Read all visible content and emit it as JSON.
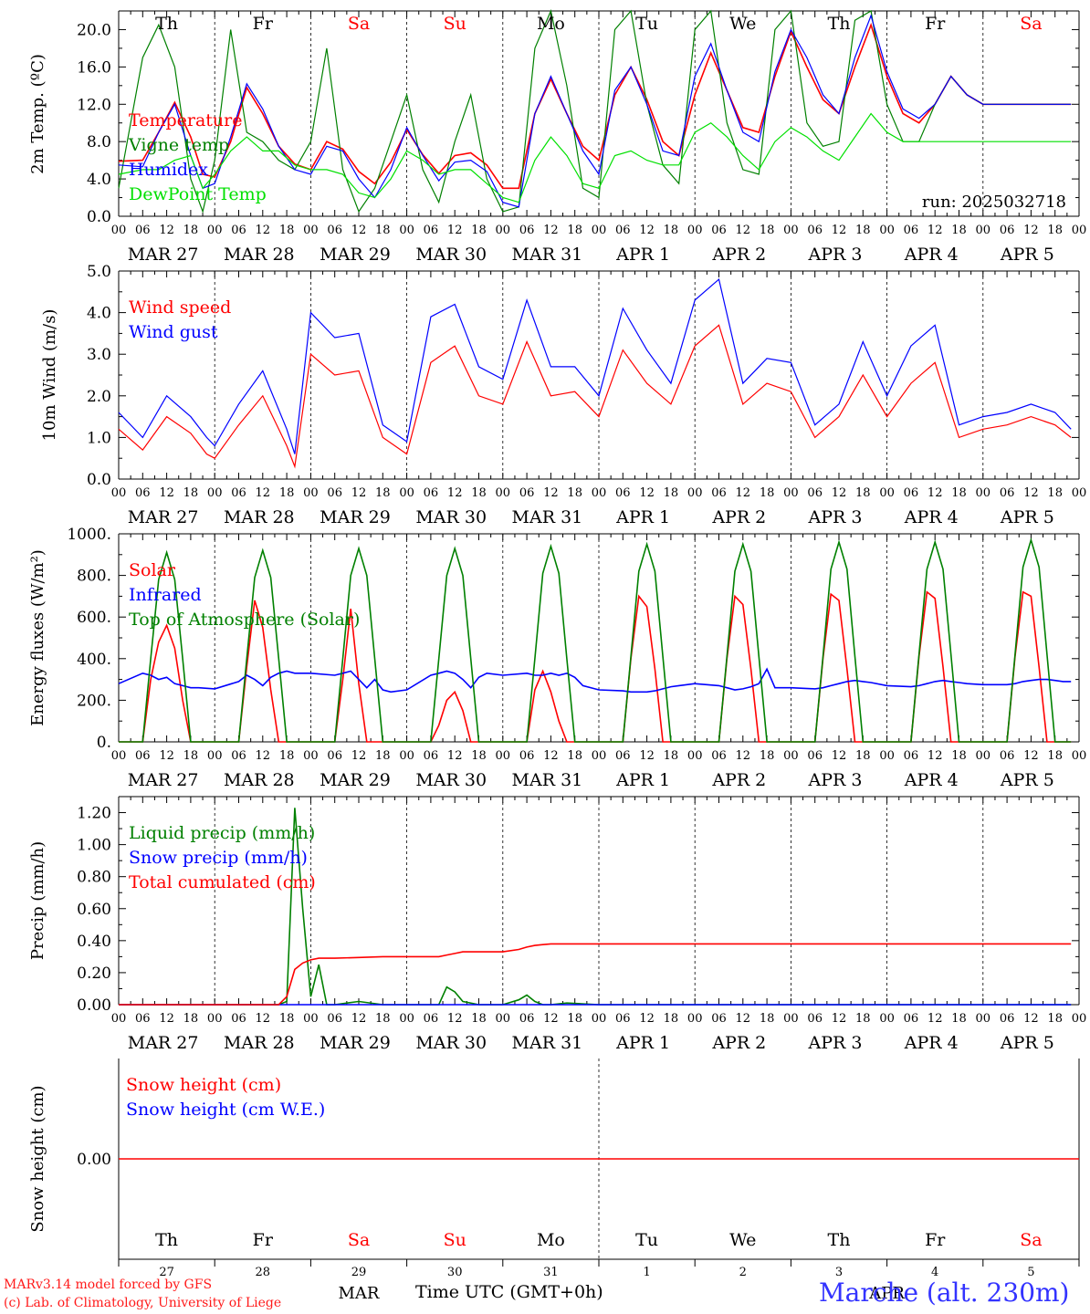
{
  "chart_data": [
    {
      "type": "line",
      "ylabel": "2m Temp. (ºC)",
      "ylim": [
        0,
        22
      ],
      "yticks": [
        "0.0",
        "4.0",
        "8.0",
        "12.0",
        "16.0",
        "20.0"
      ],
      "annotation": "run: 2025032718",
      "x_unit": "hours since 2025-03-27 00 UTC",
      "x": [
        0,
        6,
        10,
        14,
        18,
        21,
        24,
        28,
        32,
        36,
        40,
        44,
        48,
        52,
        56,
        60,
        64,
        68,
        72,
        76,
        80,
        84,
        88,
        92,
        96,
        100,
        104,
        108,
        112,
        116,
        120,
        124,
        128,
        132,
        136,
        140,
        144,
        148,
        152,
        156,
        160,
        164,
        168,
        172,
        176,
        180,
        184,
        188,
        192,
        196,
        200,
        204,
        208,
        212,
        216,
        220,
        224,
        228,
        232,
        236,
        238
      ],
      "series": [
        {
          "name": "Temperature",
          "color": "#ff0000",
          "values": [
            5.9,
            6.0,
            9.0,
            12.2,
            8.5,
            4.5,
            4.2,
            8.0,
            13.8,
            11.0,
            7.5,
            5.6,
            5.0,
            8.0,
            7.2,
            4.8,
            3.5,
            5.8,
            9.3,
            6.6,
            4.6,
            6.5,
            6.8,
            5.5,
            3.0,
            3.0,
            11.0,
            14.7,
            11.0,
            7.5,
            6.0,
            13.0,
            16.0,
            12.5,
            8.0,
            6.5,
            13.0,
            17.5,
            13.5,
            9.5,
            9.0,
            15.0,
            19.8,
            16.0,
            12.5,
            11.0,
            16.0,
            20.5,
            15.0,
            11.0,
            10.0,
            12.0,
            15.0,
            13.0,
            12.0,
            12.0,
            12.0,
            12.0,
            12.0,
            12.0,
            12.0
          ]
        },
        {
          "name": "Vigne temp",
          "color": "#008000",
          "values": [
            3.0,
            17.0,
            20.5,
            16.0,
            4.0,
            0.5,
            6.0,
            20.0,
            9.0,
            8.0,
            6.0,
            5.0,
            8.0,
            18.0,
            5.0,
            0.5,
            3.0,
            8.0,
            13.0,
            5.0,
            1.5,
            8.0,
            13.0,
            4.0,
            0.5,
            1.0,
            18.0,
            22.0,
            14.0,
            3.0,
            2.0,
            20.0,
            22.0,
            12.0,
            5.5,
            3.5,
            20.0,
            22.0,
            10.0,
            5.0,
            4.5,
            20.0,
            22.0,
            10.0,
            7.5,
            8.0,
            21.0,
            22.0,
            12.0,
            8.0,
            8.0,
            12.0,
            15.0,
            13.0,
            12.0,
            12.0,
            12.0,
            12.0,
            12.0,
            12.0,
            12.0
          ]
        },
        {
          "name": "Humidex",
          "color": "#0000ff",
          "values": [
            5.5,
            5.3,
            9.0,
            12.0,
            6.5,
            3.0,
            3.5,
            8.5,
            14.2,
            11.5,
            7.5,
            5.0,
            4.5,
            7.5,
            7.0,
            4.0,
            2.0,
            5.0,
            9.5,
            6.5,
            3.8,
            5.8,
            6.0,
            4.8,
            1.5,
            1.0,
            11.0,
            15.0,
            11.0,
            7.0,
            4.5,
            13.5,
            16.0,
            12.0,
            7.0,
            6.5,
            15.0,
            18.5,
            13.5,
            9.0,
            8.0,
            15.5,
            20.0,
            17.0,
            13.0,
            11.0,
            17.0,
            21.5,
            15.5,
            11.5,
            10.5,
            12.0,
            15.0,
            13.0,
            12.0,
            12.0,
            12.0,
            12.0,
            12.0,
            12.0,
            12.0
          ]
        },
        {
          "name": "DewPoint Temp",
          "color": "#00e000",
          "values": [
            4.5,
            5.0,
            5.0,
            6.0,
            6.5,
            3.0,
            4.5,
            7.0,
            8.5,
            7.0,
            7.0,
            5.5,
            5.0,
            5.0,
            4.5,
            2.5,
            2.0,
            4.0,
            7.0,
            6.0,
            4.5,
            5.0,
            5.0,
            3.5,
            2.0,
            1.5,
            6.0,
            8.5,
            6.5,
            3.5,
            3.0,
            6.5,
            7.0,
            6.0,
            5.5,
            5.5,
            9.0,
            10.0,
            8.5,
            6.5,
            5.0,
            8.0,
            9.5,
            8.5,
            7.0,
            6.0,
            8.5,
            11.0,
            9.0,
            8.0,
            8.0,
            8.0,
            8.0,
            8.0,
            8.0,
            8.0,
            8.0,
            8.0,
            8.0,
            8.0,
            8.0
          ]
        }
      ]
    },
    {
      "type": "line",
      "ylabel": "10m Wind (m/s)",
      "ylim": [
        0,
        5
      ],
      "yticks": [
        "0.0",
        "1.0",
        "2.0",
        "3.0",
        "4.0",
        "5.0"
      ],
      "x_unit": "hours since 2025-03-27 00 UTC",
      "x": [
        0,
        6,
        12,
        18,
        22,
        24,
        30,
        36,
        42,
        44,
        48,
        54,
        60,
        66,
        72,
        78,
        84,
        90,
        96,
        102,
        108,
        114,
        120,
        126,
        132,
        138,
        144,
        150,
        156,
        162,
        168,
        174,
        180,
        186,
        192,
        198,
        204,
        210,
        216,
        222,
        228,
        234,
        238
      ],
      "series": [
        {
          "name": "Wind speed",
          "color": "#ff0000",
          "values": [
            1.2,
            0.7,
            1.5,
            1.1,
            0.6,
            0.5,
            1.3,
            2.0,
            0.8,
            0.3,
            3.0,
            2.5,
            2.6,
            1.0,
            0.6,
            2.8,
            3.2,
            2.0,
            1.8,
            3.3,
            2.0,
            2.1,
            1.5,
            3.1,
            2.3,
            1.8,
            3.2,
            3.7,
            1.8,
            2.3,
            2.1,
            1.0,
            1.5,
            2.5,
            1.5,
            2.3,
            2.8,
            1.0,
            1.2,
            1.3,
            1.5,
            1.3,
            1.0
          ]
        },
        {
          "name": "Wind gust",
          "color": "#0000ff",
          "values": [
            1.6,
            1.0,
            2.0,
            1.5,
            1.0,
            0.8,
            1.8,
            2.6,
            1.2,
            0.6,
            4.0,
            3.4,
            3.5,
            1.3,
            0.9,
            3.9,
            4.2,
            2.7,
            2.4,
            4.3,
            2.7,
            2.7,
            2.0,
            4.1,
            3.1,
            2.3,
            4.3,
            4.8,
            2.3,
            2.9,
            2.8,
            1.3,
            1.8,
            3.3,
            2.0,
            3.2,
            3.7,
            1.3,
            1.5,
            1.6,
            1.8,
            1.6,
            1.2
          ]
        }
      ]
    },
    {
      "type": "line",
      "ylabel": "Energy fluxes (W/m²)",
      "ylim": [
        0,
        1000
      ],
      "yticks": [
        "0.",
        "200.",
        "400.",
        "600.",
        "800.",
        "1000."
      ],
      "x_unit": "hours since 2025-03-27 00 UTC",
      "x": [
        0,
        6,
        8,
        10,
        12,
        14,
        16,
        18,
        20,
        24,
        30,
        32,
        34,
        36,
        38,
        40,
        42,
        44,
        48,
        54,
        56,
        58,
        60,
        62,
        64,
        66,
        68,
        72,
        78,
        80,
        82,
        84,
        86,
        88,
        90,
        92,
        96,
        102,
        104,
        106,
        108,
        110,
        112,
        114,
        116,
        120,
        126,
        128,
        130,
        132,
        134,
        136,
        138,
        140,
        144,
        150,
        152,
        154,
        156,
        158,
        160,
        162,
        164,
        168,
        174,
        176,
        178,
        180,
        182,
        184,
        186,
        188,
        192,
        198,
        200,
        202,
        204,
        206,
        208,
        210,
        212,
        216,
        222,
        224,
        226,
        228,
        230,
        232,
        234,
        236,
        238
      ],
      "series": [
        {
          "name": "Solar",
          "color": "#ff0000",
          "values": [
            0,
            0,
            300,
            480,
            560,
            450,
            200,
            0,
            0,
            0,
            0,
            360,
            680,
            550,
            250,
            0,
            0,
            0,
            0,
            0,
            300,
            640,
            280,
            0,
            0,
            0,
            0,
            0,
            0,
            80,
            200,
            240,
            150,
            0,
            0,
            0,
            0,
            0,
            250,
            340,
            240,
            100,
            0,
            0,
            0,
            0,
            0,
            400,
            700,
            650,
            350,
            0,
            0,
            0,
            0,
            0,
            400,
            700,
            660,
            350,
            0,
            0,
            0,
            0,
            0,
            400,
            710,
            680,
            350,
            0,
            0,
            0,
            0,
            0,
            410,
            720,
            690,
            360,
            0,
            0,
            0,
            0,
            0,
            410,
            720,
            700,
            360,
            0,
            0,
            0,
            0
          ]
        },
        {
          "name": "Infrared",
          "color": "#0000ff",
          "values": [
            280,
            330,
            320,
            300,
            310,
            280,
            270,
            260,
            260,
            255,
            290,
            320,
            300,
            270,
            310,
            330,
            340,
            330,
            330,
            320,
            330,
            340,
            300,
            260,
            300,
            250,
            240,
            250,
            320,
            330,
            340,
            330,
            300,
            260,
            310,
            330,
            320,
            330,
            320,
            320,
            330,
            320,
            330,
            310,
            270,
            250,
            245,
            240,
            240,
            240,
            245,
            255,
            265,
            270,
            280,
            270,
            260,
            250,
            255,
            265,
            280,
            350,
            260,
            260,
            255,
            260,
            270,
            280,
            290,
            295,
            290,
            285,
            270,
            265,
            270,
            280,
            290,
            295,
            290,
            285,
            280,
            275,
            275,
            280,
            290,
            295,
            300,
            300,
            295,
            290,
            290
          ]
        },
        {
          "name": "Top of Atmosphere (Solar)",
          "color": "#008000",
          "values": [
            0,
            0,
            400,
            780,
            910,
            780,
            400,
            0,
            0,
            0,
            0,
            400,
            790,
            920,
            790,
            400,
            0,
            0,
            0,
            0,
            400,
            800,
            930,
            800,
            400,
            0,
            0,
            0,
            0,
            400,
            800,
            930,
            800,
            400,
            0,
            0,
            0,
            0,
            400,
            810,
            940,
            810,
            400,
            0,
            0,
            0,
            0,
            410,
            820,
            950,
            820,
            410,
            0,
            0,
            0,
            0,
            410,
            820,
            950,
            820,
            410,
            0,
            0,
            0,
            0,
            410,
            830,
            960,
            830,
            410,
            0,
            0,
            0,
            0,
            420,
            830,
            960,
            830,
            420,
            0,
            0,
            0,
            0,
            420,
            840,
            970,
            840,
            420,
            0,
            0,
            0
          ]
        }
      ]
    },
    {
      "type": "line",
      "ylabel": "Precip (mm/h)",
      "ylim": [
        0,
        1.3
      ],
      "yticks": [
        "0.00",
        "0.20",
        "0.40",
        "0.60",
        "0.80",
        "1.00",
        "1.20"
      ],
      "x_unit": "hours since 2025-03-27 00 UTC",
      "x": [
        0,
        12,
        24,
        36,
        40,
        42,
        44,
        46,
        48,
        50,
        52,
        54,
        60,
        66,
        72,
        78,
        80,
        82,
        84,
        86,
        90,
        96,
        100,
        102,
        104,
        106,
        108,
        112,
        120,
        132,
        144,
        156,
        168,
        180,
        192,
        204,
        216,
        228,
        238
      ],
      "series": [
        {
          "name": "Liquid precip (mm/h)",
          "color": "#008000",
          "values": [
            0,
            0,
            0,
            0,
            0,
            0.02,
            1.23,
            0.6,
            0.05,
            0.25,
            0,
            0,
            0.02,
            0,
            0,
            0,
            0,
            0.11,
            0.08,
            0.02,
            0,
            0,
            0.03,
            0.06,
            0.02,
            0,
            0,
            0.01,
            0,
            0,
            0,
            0,
            0,
            0,
            0,
            0,
            0,
            0,
            0
          ]
        },
        {
          "name": "Snow precip (mm/h)",
          "color": "#0000ff",
          "values": [
            0,
            0,
            0,
            0,
            0,
            0,
            0,
            0,
            0,
            0,
            0,
            0,
            0,
            0,
            0,
            0,
            0,
            0,
            0,
            0,
            0,
            0,
            0,
            0,
            0,
            0,
            0,
            0,
            0,
            0,
            0,
            0,
            0,
            0,
            0,
            0,
            0,
            0,
            0
          ]
        },
        {
          "name": "Total cumulated (cm)",
          "color": "#ff0000",
          "values": [
            0,
            0,
            0,
            0,
            0,
            0.05,
            0.22,
            0.26,
            0.28,
            0.29,
            0.29,
            0.29,
            0.295,
            0.3,
            0.3,
            0.3,
            0.3,
            0.31,
            0.32,
            0.33,
            0.33,
            0.33,
            0.345,
            0.36,
            0.37,
            0.375,
            0.38,
            0.38,
            0.38,
            0.38,
            0.38,
            0.38,
            0.38,
            0.38,
            0.38,
            0.38,
            0.38,
            0.38,
            0.38
          ]
        }
      ]
    },
    {
      "type": "line",
      "ylabel": "Snow height (cm)",
      "yticks": [
        "0.00"
      ],
      "x_unit": "hours since 2025-03-27 00 UTC",
      "x": [
        0,
        240
      ],
      "series": [
        {
          "name": "Snow height (cm)",
          "color": "#ff0000",
          "values": [
            0,
            0
          ]
        },
        {
          "name": "Snow height (cm W.E.)",
          "color": "#0000ff",
          "values": [
            0,
            0
          ]
        }
      ]
    }
  ],
  "weekdays": [
    {
      "label": "Th",
      "color": "#000000"
    },
    {
      "label": "Fr",
      "color": "#000000"
    },
    {
      "label": "Sa",
      "color": "#ff0000"
    },
    {
      "label": "Su",
      "color": "#ff0000"
    },
    {
      "label": "Mo",
      "color": "#000000"
    },
    {
      "label": "Tu",
      "color": "#000000"
    },
    {
      "label": "We",
      "color": "#000000"
    },
    {
      "label": "Th",
      "color": "#000000"
    },
    {
      "label": "Fr",
      "color": "#000000"
    },
    {
      "label": "Sa",
      "color": "#ff0000"
    }
  ],
  "date_labels": [
    "MAR 27",
    "MAR 28",
    "MAR 29",
    "MAR 30",
    "MAR 31",
    "APR  1",
    "APR  2",
    "APR  3",
    "APR  4",
    "APR  5"
  ],
  "hour_labels": [
    "00",
    "06",
    "12",
    "18"
  ],
  "hour_end_label": "00",
  "day_numbers": [
    "27",
    "28",
    "29",
    "30",
    "31",
    "1",
    "2",
    "3",
    "4",
    "5"
  ],
  "month_labels": [
    "MAR",
    "APR"
  ],
  "footer": {
    "model_credit": "MARv3.14 model forced by GFS",
    "lab_credit": "(c) Lab. of Climatology, University of Liege",
    "axis_title": "Time UTC (GMT+0h)",
    "station": "Marche (alt. 230m)"
  }
}
